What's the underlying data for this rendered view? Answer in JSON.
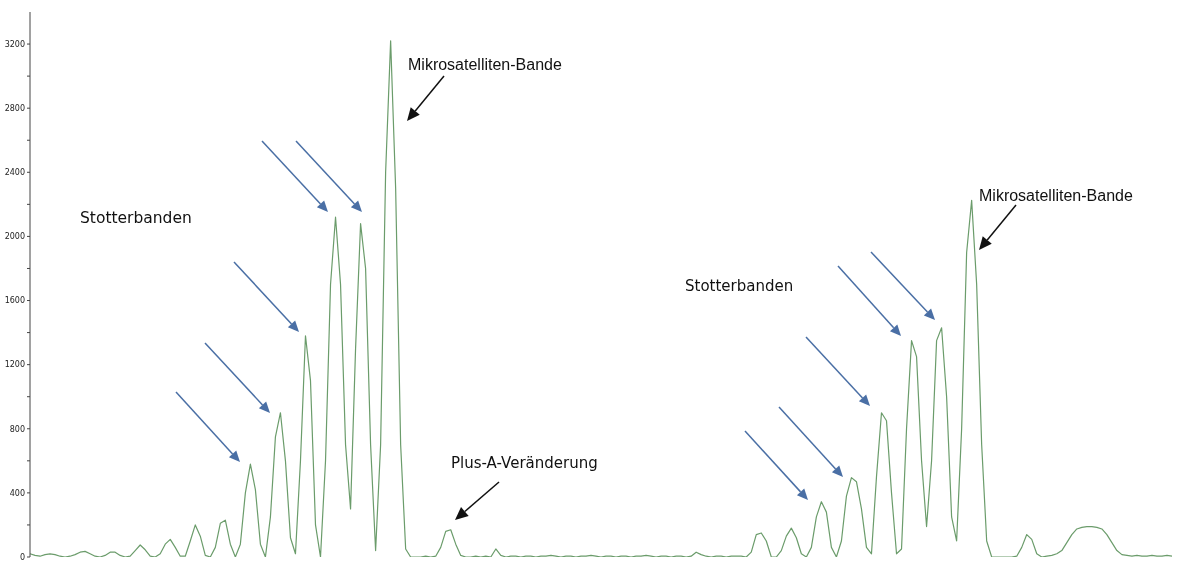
{
  "chart_data": {
    "type": "line",
    "categories": [
      null,
      null,
      null,
      null,
      null,
      null,
      null,
      null,
      null,
      null,
      null,
      null,
      null,
      null,
      null,
      null,
      null,
      null,
      null,
      null,
      null,
      null,
      null,
      null,
      null,
      null,
      null,
      null,
      null,
      null,
      null,
      null,
      null,
      null,
      null,
      null,
      null,
      null,
      null,
      null,
      null,
      null,
      null,
      null,
      null,
      null,
      null,
      null,
      null,
      null,
      null,
      null,
      null,
      null,
      null,
      null,
      null,
      null,
      null,
      null,
      null,
      null,
      null,
      null,
      null,
      null,
      null,
      null,
      null,
      null,
      null,
      null,
      null,
      null,
      null,
      null,
      null,
      null,
      null,
      null,
      null,
      null,
      null,
      null,
      null,
      null,
      null,
      null,
      null,
      null,
      null,
      null,
      null,
      null,
      null,
      null,
      null,
      null,
      null,
      null,
      null,
      null,
      null,
      null,
      null,
      null,
      null,
      null,
      null,
      null,
      null,
      null,
      null,
      null,
      null,
      null,
      null,
      null,
      null,
      null,
      null,
      null,
      null,
      null,
      null,
      null,
      null,
      null,
      null,
      null,
      null,
      null,
      null,
      null,
      null,
      null,
      null,
      null,
      null,
      null,
      null,
      null,
      null,
      null,
      null,
      null,
      null,
      null,
      null,
      null,
      null,
      null,
      null,
      null,
      null,
      null,
      null,
      null,
      null,
      null,
      null,
      null,
      null,
      null,
      null,
      null,
      null,
      null,
      null,
      null,
      null,
      null,
      null,
      null,
      null,
      null,
      null,
      null,
      null,
      null,
      null,
      null,
      null,
      null,
      null,
      null,
      null,
      null,
      null,
      null,
      null,
      null,
      null,
      null,
      null,
      null,
      null,
      null,
      null,
      null,
      null,
      null,
      null,
      null,
      null,
      null,
      null,
      null,
      null,
      null,
      null,
      null,
      null,
      null,
      null,
      null,
      null,
      null,
      null,
      null,
      null,
      null,
      null,
      null,
      null,
      null,
      null,
      null,
      null
    ],
    "values": [
      20,
      10,
      5,
      15,
      20,
      15,
      5,
      0,
      5,
      15,
      30,
      35,
      20,
      5,
      0,
      10,
      30,
      30,
      10,
      0,
      5,
      40,
      75,
      45,
      5,
      0,
      20,
      80,
      110,
      60,
      5,
      5,
      100,
      200,
      130,
      10,
      0,
      60,
      210,
      230,
      80,
      0,
      80,
      400,
      580,
      420,
      80,
      0,
      250,
      750,
      900,
      600,
      120,
      20,
      600,
      1380,
      1100,
      200,
      0,
      600,
      1700,
      2120,
      1700,
      700,
      300,
      1300,
      2080,
      1800,
      700,
      40,
      700,
      2400,
      3220,
      2300,
      700,
      50,
      0,
      0,
      0,
      5,
      0,
      5,
      60,
      160,
      170,
      80,
      10,
      0,
      0,
      5,
      0,
      5,
      0,
      50,
      10,
      0,
      5,
      5,
      0,
      5,
      5,
      0,
      5,
      5,
      10,
      5,
      0,
      5,
      5,
      0,
      5,
      5,
      10,
      5,
      0,
      5,
      5,
      0,
      5,
      5,
      0,
      5,
      5,
      10,
      5,
      0,
      5,
      5,
      0,
      5,
      5,
      0,
      5,
      30,
      15,
      5,
      0,
      5,
      5,
      0,
      5,
      5,
      5,
      0,
      30,
      140,
      150,
      100,
      0,
      0,
      40,
      130,
      180,
      120,
      20,
      0,
      60,
      250,
      345,
      280,
      60,
      0,
      100,
      380,
      495,
      470,
      300,
      60,
      20,
      500,
      900,
      850,
      400,
      20,
      50,
      800,
      1350,
      1250,
      600,
      190,
      600,
      1350,
      1430,
      1000,
      250,
      100,
      800,
      1900,
      2225,
      1700,
      700,
      100,
      0,
      0,
      0,
      0,
      0,
      5,
      60,
      140,
      110,
      20,
      0,
      5,
      10,
      20,
      40,
      90,
      140,
      175,
      185,
      190,
      190,
      185,
      175,
      140,
      90,
      40,
      15,
      10,
      5,
      10,
      5,
      5,
      10,
      5,
      5,
      10,
      5
    ],
    "color": "#6b9c6b",
    "ylim": [
      0,
      3400
    ],
    "yticks": [
      0,
      {
        "value": 200,
        "label": null
      },
      400,
      {
        "value": 600,
        "label": null
      },
      800,
      {
        "value": 1000,
        "label": null
      },
      1200,
      {
        "value": 1400,
        "label": null
      },
      1600,
      {
        "value": 1800,
        "label": null
      },
      2000,
      {
        "value": 2200,
        "label": null
      },
      2400,
      {
        "value": 2600,
        "label": null
      },
      2800,
      {
        "value": 3000,
        "label": null
      },
      3200
    ],
    "tick_labels": "y",
    "annotations": [
      "Stotterbanden",
      "Mikrosatelliten-Bande",
      "Plus-A-Veränderung",
      "Stotterbanden",
      "Mikrosatelliten-Bande"
    ]
  }
}
